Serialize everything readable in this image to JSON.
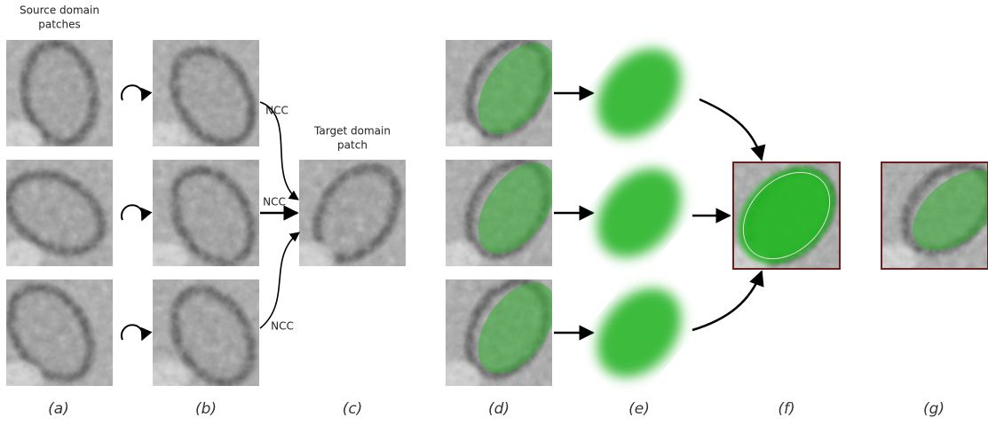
{
  "source_title": [
    "Source domain",
    "patches"
  ],
  "target_title": [
    "Target domain",
    "patch"
  ],
  "ncc_labels": [
    "NCC",
    "NCC",
    "NCC"
  ],
  "panel_labels": [
    "(a)",
    "(b)",
    "(c)",
    "(d)",
    "(e)",
    "(f)",
    "(g)"
  ]
}
